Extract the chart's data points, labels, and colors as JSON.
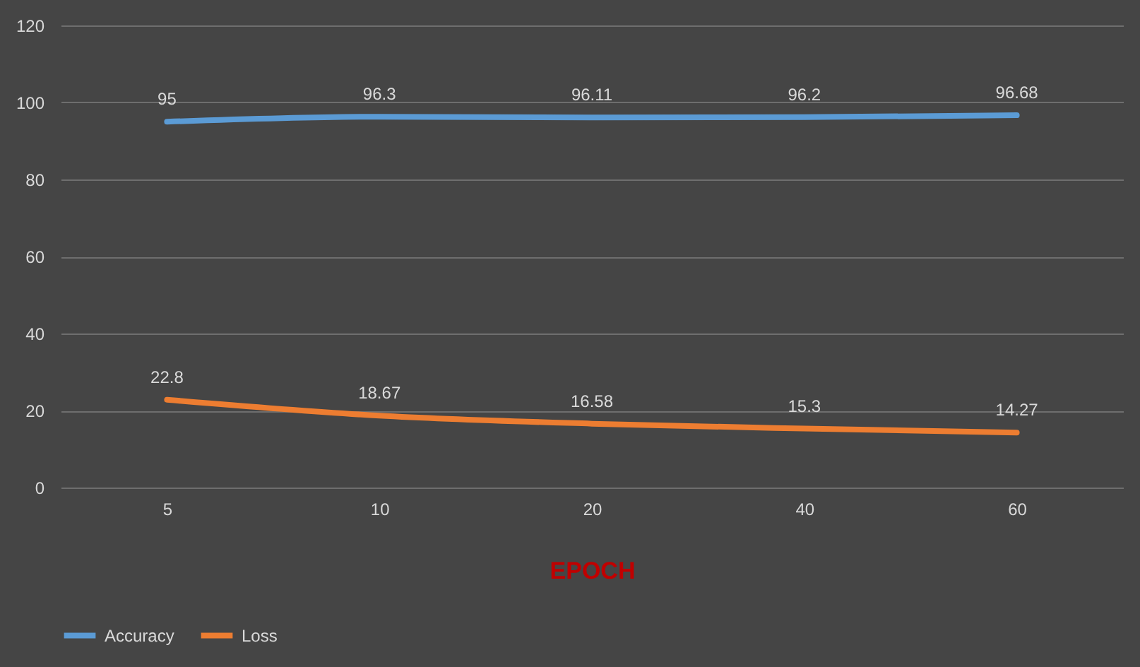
{
  "chart_data": {
    "type": "line",
    "xlabel": "EPOCH",
    "categories": [
      "5",
      "10",
      "20",
      "40",
      "60"
    ],
    "series": [
      {
        "name": "Accuracy",
        "color": "#5b9bd5",
        "values": [
          95,
          96.3,
          96.11,
          96.2,
          96.68
        ]
      },
      {
        "name": "Loss",
        "color": "#ed7d31",
        "values": [
          22.8,
          18.67,
          16.58,
          15.3,
          14.27
        ]
      }
    ],
    "ylim": [
      0,
      120
    ],
    "yticks": [
      0,
      20,
      40,
      60,
      80,
      100,
      120
    ],
    "grid": "y",
    "legend": "bottom",
    "data_labels": true
  }
}
